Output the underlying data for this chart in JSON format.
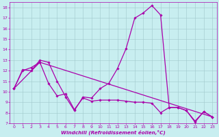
{
  "xlabel": "Windchill (Refroidissement éolien,°C)",
  "xlim": [
    -0.5,
    23.5
  ],
  "ylim": [
    7,
    18.5
  ],
  "xticks": [
    0,
    1,
    2,
    3,
    4,
    5,
    6,
    7,
    8,
    9,
    10,
    11,
    12,
    13,
    14,
    15,
    16,
    17,
    18,
    19,
    20,
    21,
    22,
    23
  ],
  "yticks": [
    7,
    8,
    9,
    10,
    11,
    12,
    13,
    14,
    15,
    16,
    17,
    18
  ],
  "line_color": "#aa00aa",
  "bg_color": "#c8eef0",
  "grid_color": "#a0c8cc",
  "line1_x": [
    0,
    1,
    2,
    3,
    4,
    5,
    6,
    7,
    8,
    9,
    10,
    11,
    12,
    13,
    14,
    15,
    16,
    17,
    18,
    19,
    20,
    21,
    22,
    23
  ],
  "line1_y": [
    10.3,
    12.1,
    12.0,
    13.0,
    12.8,
    11.0,
    9.5,
    8.2,
    9.5,
    9.4,
    10.3,
    10.8,
    12.2,
    14.1,
    17.0,
    17.5,
    18.2,
    17.3,
    8.5,
    8.5,
    8.2,
    7.2,
    8.1,
    7.6
  ],
  "line2_x": [
    0,
    1,
    2,
    3,
    4,
    5,
    6,
    7,
    8,
    9,
    10,
    11,
    12,
    13,
    14,
    15,
    16,
    17,
    18,
    19,
    20,
    21,
    22,
    23
  ],
  "line2_y": [
    10.3,
    12.0,
    12.3,
    12.8,
    10.8,
    9.6,
    9.8,
    8.3,
    9.4,
    9.1,
    9.2,
    9.2,
    9.2,
    9.1,
    9.0,
    9.0,
    8.9,
    8.0,
    8.5,
    8.5,
    8.2,
    7.1,
    8.1,
    7.6
  ],
  "line3_x": [
    0,
    3,
    23
  ],
  "line3_y": [
    10.3,
    12.8,
    7.6
  ]
}
